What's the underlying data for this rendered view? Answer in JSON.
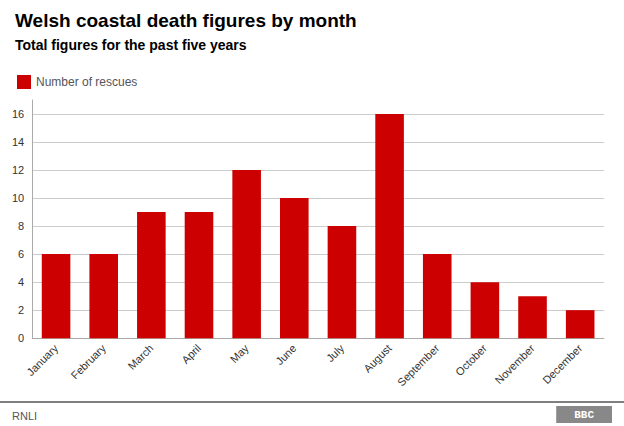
{
  "chart_data": {
    "type": "bar",
    "title": "Welsh coastal death figures by month",
    "subtitle": "Total figures for the past five years",
    "categories": [
      "January",
      "February",
      "March",
      "April",
      "May",
      "June",
      "July",
      "August",
      "September",
      "October",
      "November",
      "December"
    ],
    "series": [
      {
        "name": "Number of rescues",
        "color": "#cc0000",
        "values": [
          6,
          6,
          9,
          9,
          12,
          10,
          8,
          16,
          6,
          4,
          3,
          2
        ]
      }
    ],
    "ylim": [
      0,
      17
    ],
    "yticks": [
      0,
      2,
      4,
      6,
      8,
      10,
      12,
      14,
      16
    ],
    "grid": true,
    "legend": "top-left",
    "annotations": [
      "RNLI",
      "BBC"
    ]
  }
}
